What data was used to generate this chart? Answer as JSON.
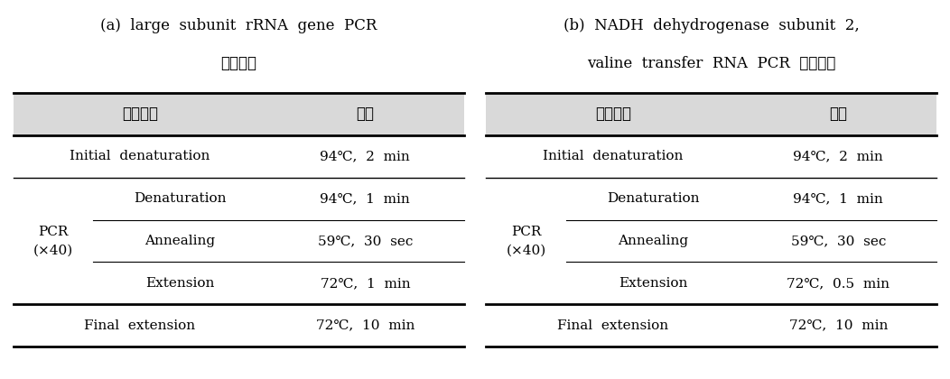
{
  "table_a": {
    "title_line1": "(a)  large  subunit  rRNA  gene  PCR",
    "title_line2": "반응조건",
    "header": [
      "반응단계",
      "조건"
    ],
    "rows": [
      {
        "col1": "Initial  denaturation",
        "col2": "94℃,  2  min"
      },
      {
        "col1": "Denaturation",
        "col2": "94℃,  1  min"
      },
      {
        "col1": "Annealing",
        "col2": "59℃,  30  sec"
      },
      {
        "col1": "Extension",
        "col2": "72℃,  1  min"
      },
      {
        "col1": "Final  extension",
        "col2": "72℃,  10  min"
      }
    ],
    "pcr_label": "PCR\n(×40)"
  },
  "table_b": {
    "title_line1": "(b)  NADH  dehydrogenase  subunit  2,",
    "title_line2": "valine  transfer  RNA  PCR  반응조건",
    "header": [
      "반응단계",
      "조건"
    ],
    "rows": [
      {
        "col1": "Initial  denaturation",
        "col2": "94℃,  2  min"
      },
      {
        "col1": "Denaturation",
        "col2": "94℃,  1  min"
      },
      {
        "col1": "Annealing",
        "col2": "59℃,  30  sec"
      },
      {
        "col1": "Extension",
        "col2": "72℃,  0.5  min"
      },
      {
        "col1": "Final  extension",
        "col2": "72℃,  10  min"
      }
    ],
    "pcr_label": "PCR\n(×40)"
  },
  "header_bg": "#d9d9d9",
  "bg_color": "#ffffff",
  "text_color": "#000000",
  "font_size": 11,
  "title_font_size": 12
}
